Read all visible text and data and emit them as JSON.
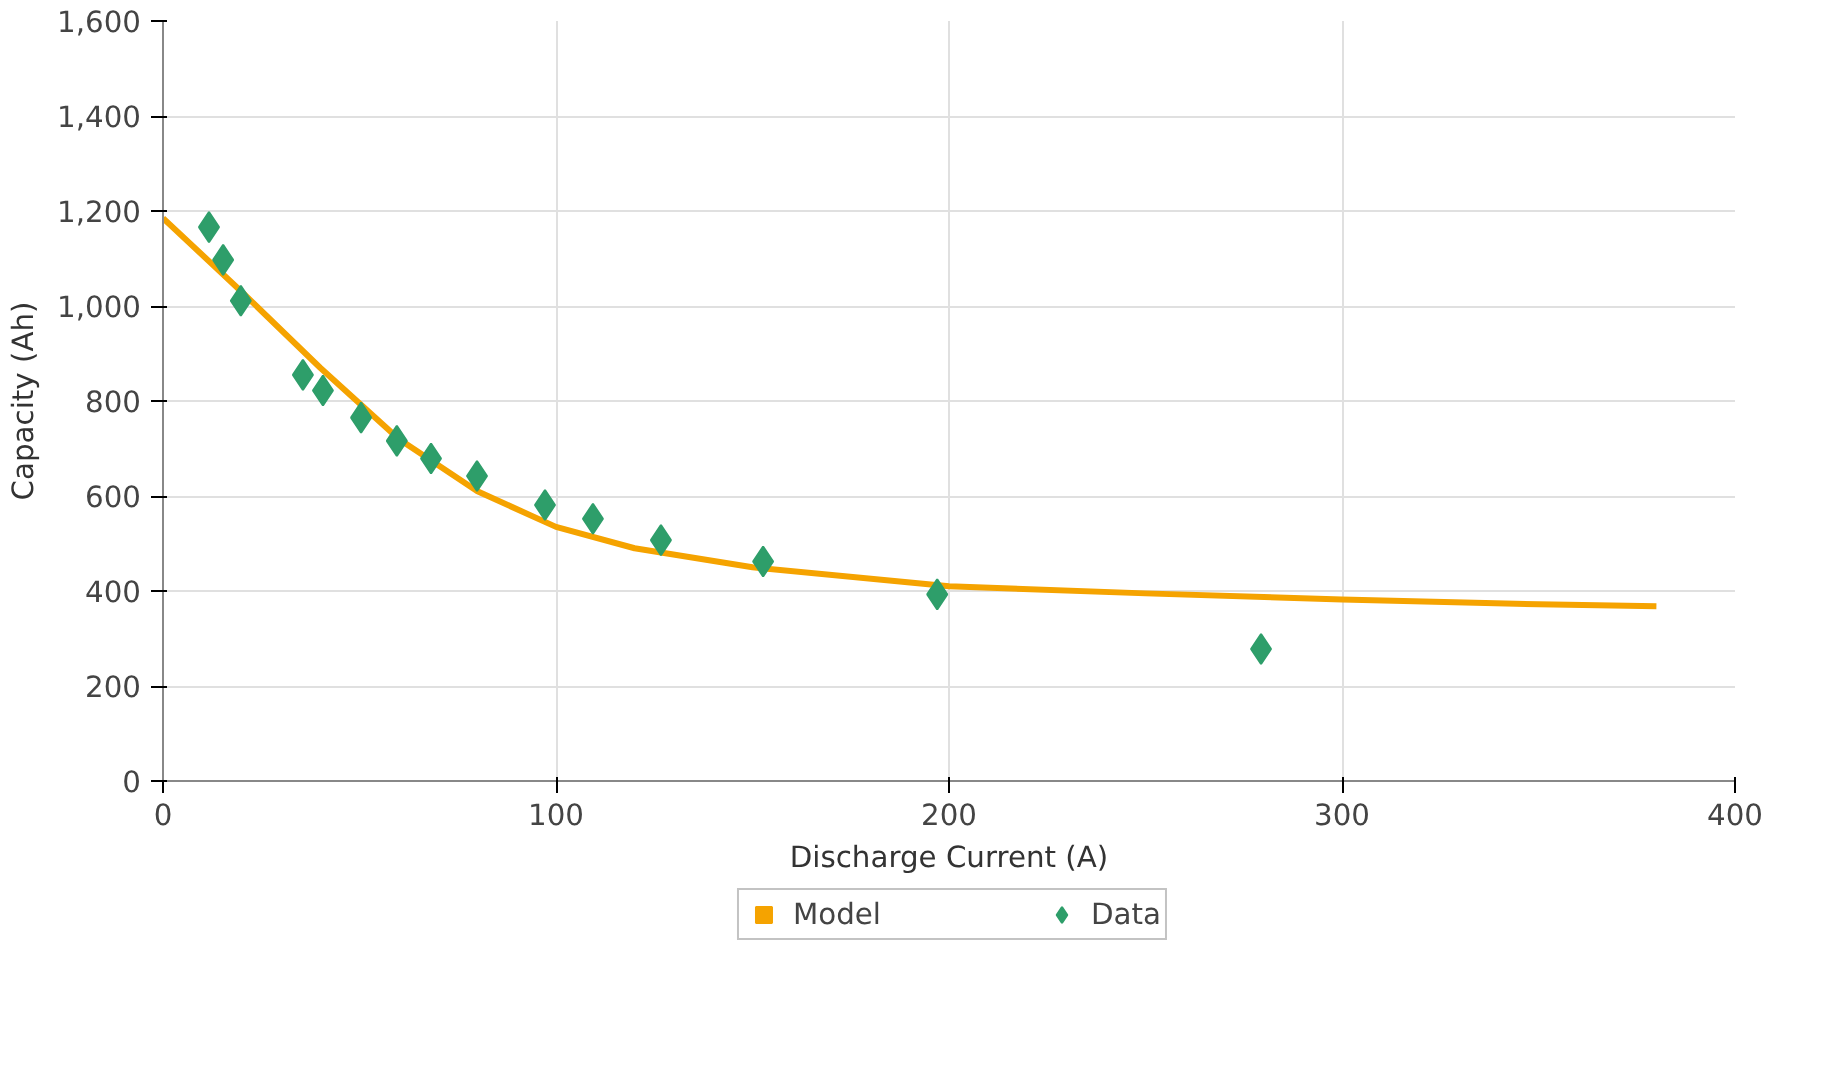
{
  "chart_data": {
    "type": "scatter",
    "xlabel": "Discharge Current (A)",
    "ylabel": "Capacity (Ah)",
    "xlim": [
      0,
      400
    ],
    "xticks": [
      0,
      100,
      200,
      300,
      400
    ],
    "ylim": [
      0,
      1600
    ],
    "yticks": [
      {
        "value": 0,
        "label": "0"
      },
      {
        "value": 200,
        "label": "200"
      },
      {
        "value": 400,
        "label": "400"
      },
      {
        "value": 600,
        "label": "600"
      },
      {
        "value": 800,
        "label": "800"
      },
      {
        "value": 1000,
        "label": "1,000"
      },
      {
        "value": 1200,
        "label": "1,200"
      },
      {
        "value": 1400,
        "label": "1,400"
      },
      {
        "value": 1600,
        "label": "1,600"
      }
    ],
    "grid": true,
    "legend": "bottom",
    "series": [
      {
        "name": "Model",
        "type": "line",
        "color": "#f5a300",
        "marker": "none",
        "x": [
          0,
          20,
          40,
          60,
          80,
          100,
          120,
          150,
          200,
          250,
          300,
          350,
          380
        ],
        "values": [
          1185,
          1030,
          870,
          720,
          610,
          535,
          490,
          450,
          410,
          395,
          382,
          372,
          368
        ]
      },
      {
        "name": "Data",
        "color": "#2e9e6a",
        "marker": "diamond",
        "x": [
          11.7,
          15.3,
          19.8,
          35.6,
          40.7,
          50.4,
          59.5,
          68.2,
          79.9,
          97.2,
          109.4,
          126.7,
          152.7,
          197,
          279.4
        ],
        "values": [
          1166,
          1097,
          1011,
          855,
          822,
          765,
          716,
          679,
          642,
          581,
          552,
          507,
          462,
          393,
          278
        ]
      }
    ]
  }
}
